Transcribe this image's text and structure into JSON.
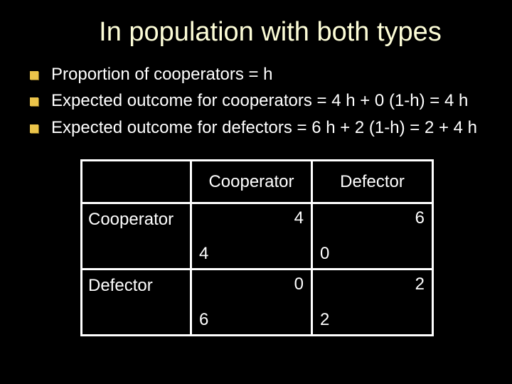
{
  "title": "In population with both types",
  "bullets": [
    "Proportion of cooperators = h",
    "Expected outcome for cooperators = 4 h + 0 (1-h) = 4 h",
    "Expected outcome for defectors = 6 h + 2 (1-h) = 2 + 4 h"
  ],
  "table": {
    "col_headers": [
      "Cooperator",
      "Defector"
    ],
    "row_headers": [
      "Cooperator",
      "Defector"
    ],
    "cells": {
      "r0c0": {
        "upper": "4",
        "lower": "4"
      },
      "r0c1": {
        "upper": "6",
        "lower": "0"
      },
      "r1c0": {
        "upper": "0",
        "lower": "6"
      },
      "r1c1": {
        "upper": "2",
        "lower": "2"
      }
    }
  },
  "colors": {
    "background": "#000000",
    "title": "#fdfdd7",
    "text": "#ffffff",
    "bullet": "#ebc44a",
    "border": "#ffffff"
  }
}
